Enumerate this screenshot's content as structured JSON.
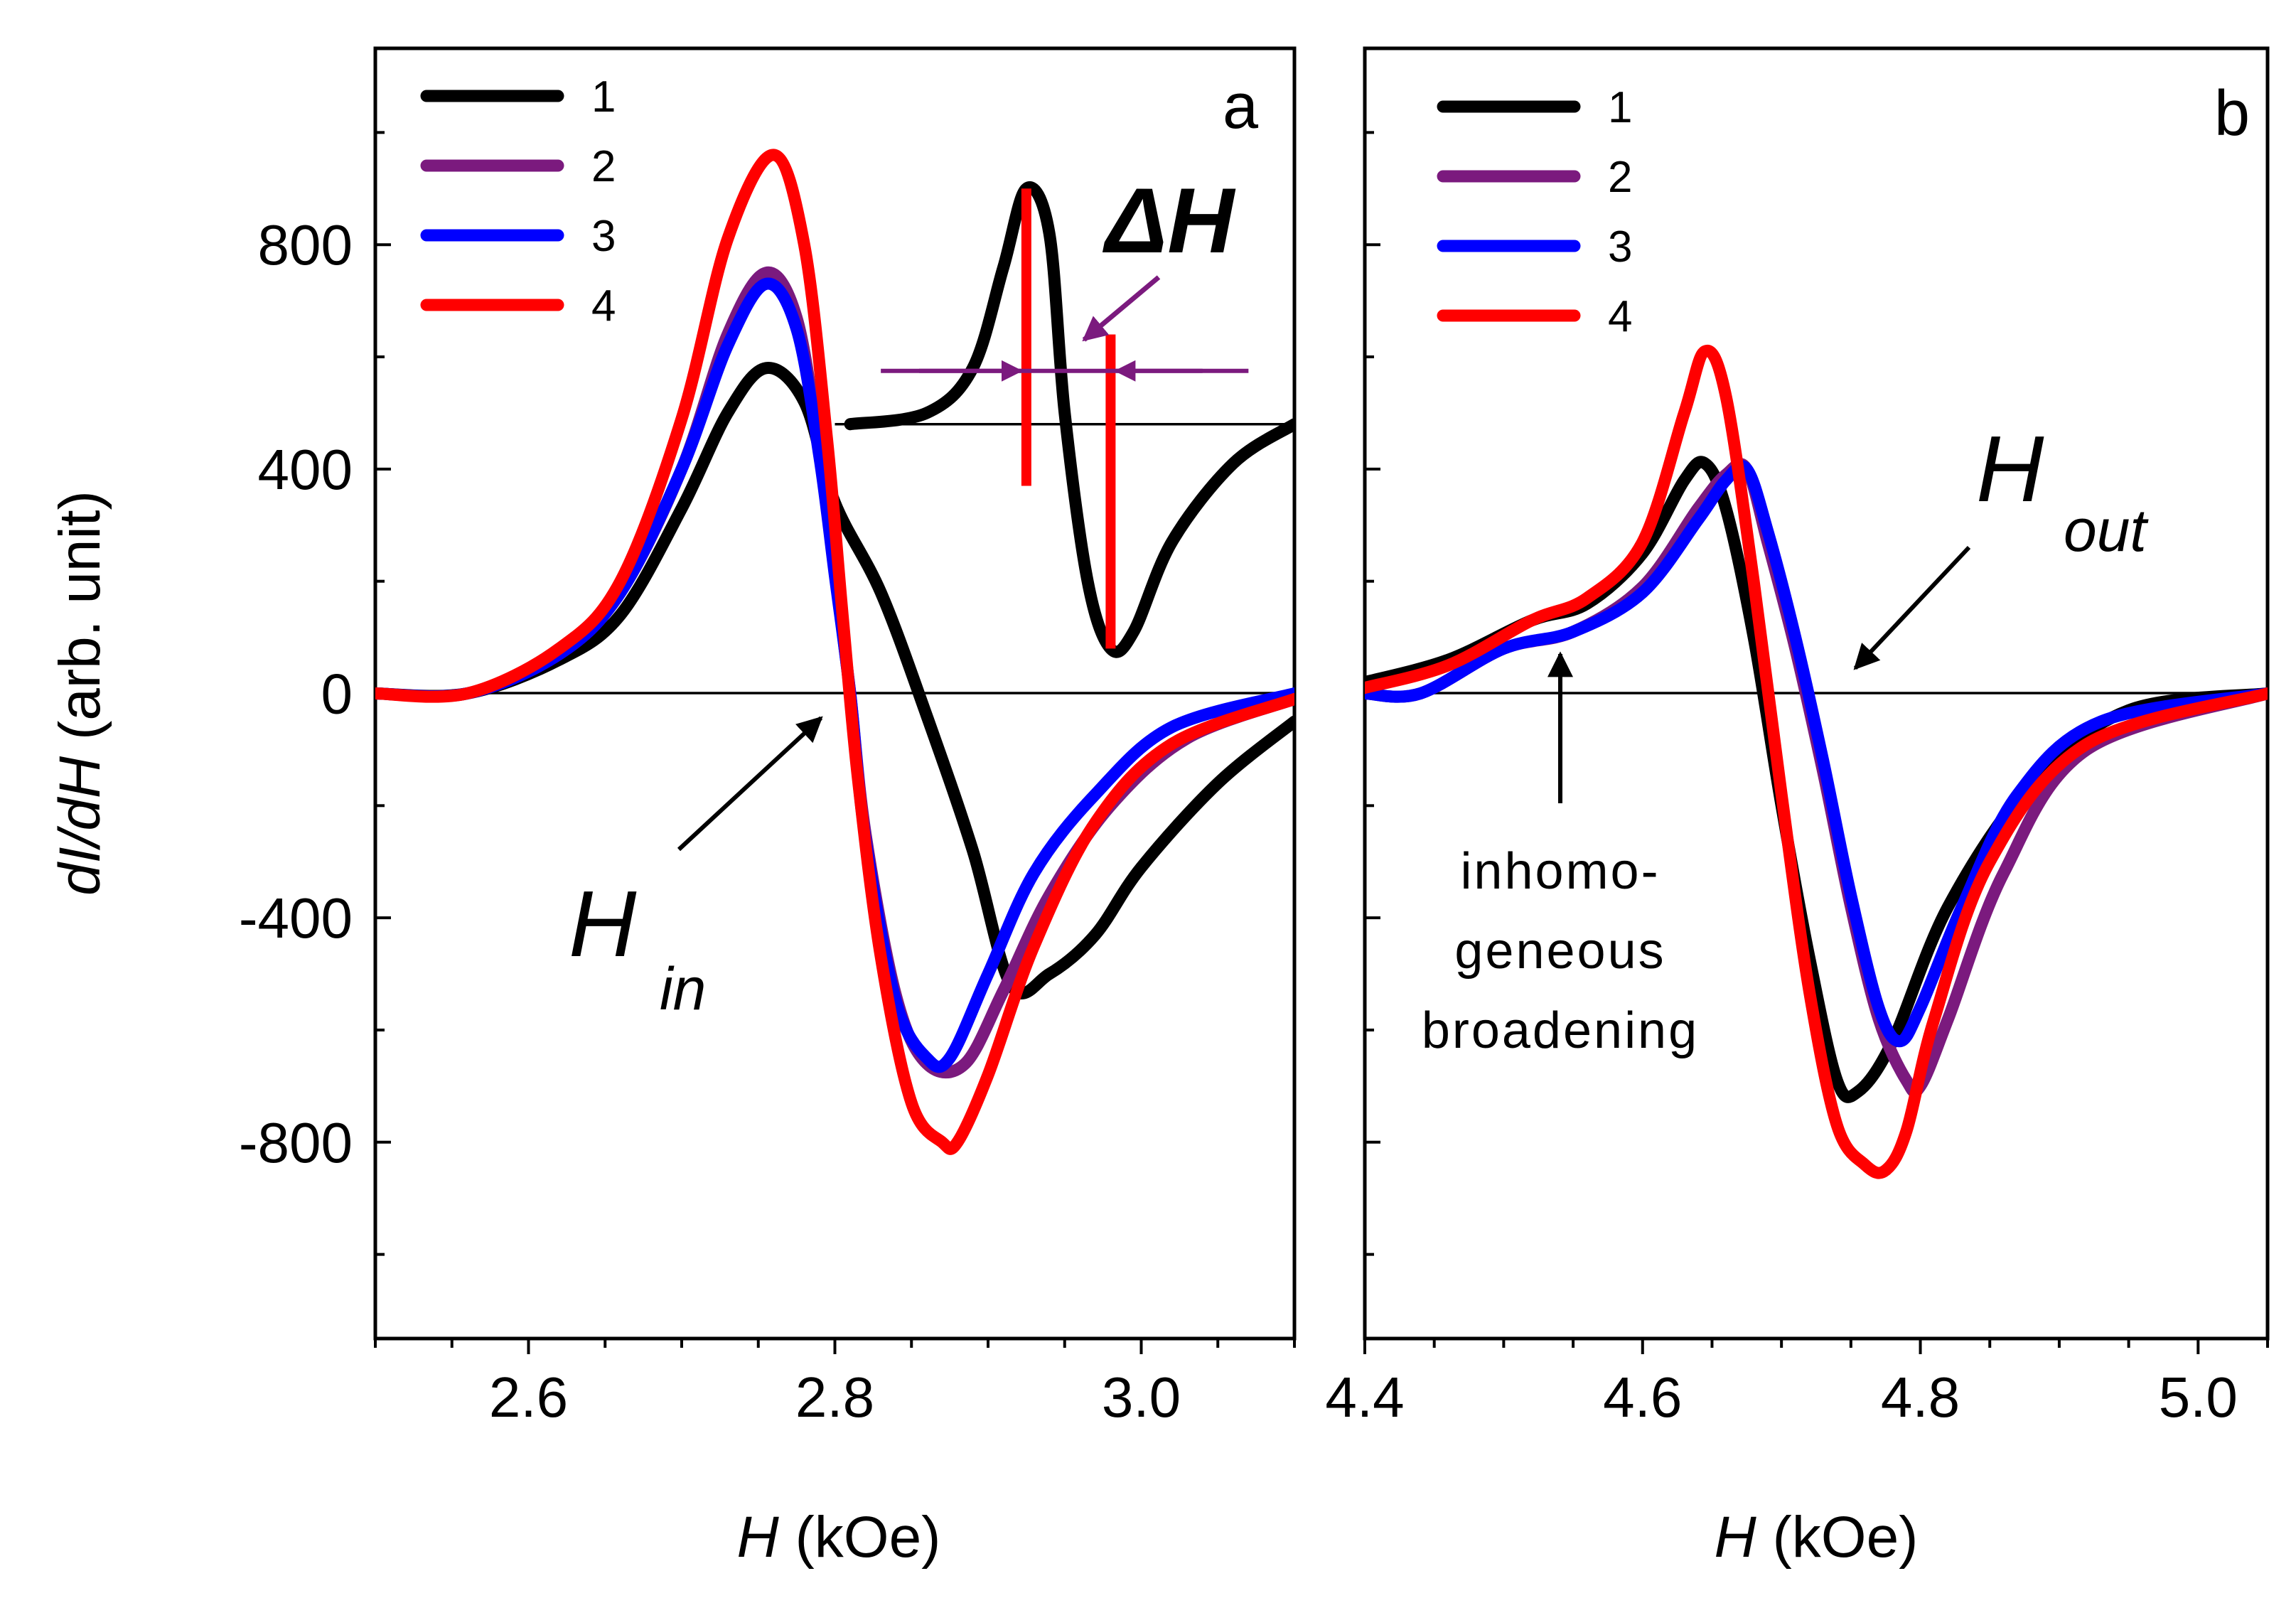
{
  "chart_data": [
    {
      "type": "line",
      "panel_label": "a",
      "xlabel": "H (kOe)",
      "ylabel": "dI/dH  (arb. unit)",
      "xlim": [
        2.5,
        3.1
      ],
      "ylim": [
        -1150,
        1150
      ],
      "xticks": [
        "2.6",
        "2.8",
        "3.0"
      ],
      "yticks": [
        "800",
        "400",
        "0",
        "-400",
        "-800"
      ],
      "legend": [
        "1",
        "2",
        "3",
        "4"
      ],
      "series": [
        {
          "name": "1",
          "color": "#000000",
          "x": [
            2.5,
            2.56,
            2.62,
            2.66,
            2.7,
            2.73,
            2.755,
            2.78,
            2.8,
            2.83,
            2.86,
            2.89,
            2.915,
            2.94,
            2.97,
            3.0,
            3.05,
            3.1
          ],
          "y": [
            0,
            0,
            60,
            140,
            330,
            500,
            580,
            520,
            340,
            180,
            -40,
            -280,
            -520,
            -500,
            -430,
            -310,
            -160,
            -50
          ]
        },
        {
          "name": "2",
          "color": "#7b1a7e",
          "x": [
            2.5,
            2.56,
            2.62,
            2.66,
            2.7,
            2.73,
            2.755,
            2.775,
            2.79,
            2.8,
            2.81,
            2.82,
            2.84,
            2.86,
            2.885,
            2.91,
            2.94,
            2.98,
            3.03,
            3.1
          ],
          "y": [
            0,
            0,
            70,
            180,
            400,
            640,
            750,
            670,
            430,
            220,
            0,
            -250,
            -540,
            -660,
            -660,
            -530,
            -360,
            -200,
            -80,
            -10
          ]
        },
        {
          "name": "3",
          "color": "#0000ff",
          "x": [
            2.5,
            2.56,
            2.62,
            2.66,
            2.7,
            2.73,
            2.755,
            2.775,
            2.79,
            2.8,
            2.81,
            2.82,
            2.84,
            2.86,
            2.875,
            2.9,
            2.93,
            2.97,
            3.02,
            3.1
          ],
          "y": [
            0,
            0,
            70,
            180,
            400,
            620,
            730,
            650,
            420,
            210,
            0,
            -260,
            -550,
            -650,
            -650,
            -500,
            -320,
            -180,
            -60,
            0
          ]
        },
        {
          "name": "4",
          "color": "#ff0000",
          "x": [
            2.5,
            2.56,
            2.62,
            2.66,
            2.7,
            2.73,
            2.76,
            2.78,
            2.795,
            2.805,
            2.815,
            2.83,
            2.85,
            2.87,
            2.88,
            2.9,
            2.93,
            2.97,
            3.02,
            3.1
          ],
          "y": [
            0,
            0,
            80,
            200,
            490,
            810,
            960,
            800,
            450,
            140,
            -150,
            -470,
            -730,
            -800,
            -800,
            -680,
            -450,
            -230,
            -90,
            -10
          ]
        }
      ],
      "inset": {
        "x": [
          2.81,
          2.86,
          2.89,
          2.91,
          2.925,
          2.94,
          2.95,
          2.965,
          2.98,
          2.995,
          3.02,
          3.06,
          3.1
        ],
        "y": [
          480,
          500,
          580,
          760,
          900,
          820,
          500,
          200,
          80,
          110,
          270,
          410,
          480
        ]
      },
      "annotations": [
        "ΔH",
        "H",
        "in"
      ]
    },
    {
      "type": "line",
      "panel_label": "b",
      "xlabel": "H (kOe)",
      "ylabel": "",
      "xlim": [
        4.4,
        5.05
      ],
      "ylim": [
        -1150,
        1150
      ],
      "xticks": [
        "4.4",
        "4.6",
        "4.8",
        "5.0"
      ],
      "yticks": [],
      "legend": [
        "1",
        "2",
        "3",
        "4"
      ],
      "series": [
        {
          "name": "1",
          "color": "#000000",
          "x": [
            4.4,
            4.46,
            4.52,
            4.56,
            4.6,
            4.63,
            4.645,
            4.66,
            4.68,
            4.7,
            4.72,
            4.74,
            4.755,
            4.78,
            4.82,
            4.88,
            4.95,
            5.05
          ],
          "y": [
            20,
            60,
            130,
            160,
            250,
            380,
            410,
            330,
            100,
            -200,
            -470,
            -690,
            -710,
            -620,
            -380,
            -160,
            -30,
            0
          ]
        },
        {
          "name": "2",
          "color": "#7b1a7e",
          "x": [
            4.4,
            4.44,
            4.5,
            4.55,
            4.6,
            4.64,
            4.66,
            4.675,
            4.69,
            4.71,
            4.73,
            4.75,
            4.77,
            4.79,
            4.8,
            4.82,
            4.86,
            4.92,
            5.05
          ],
          "y": [
            0,
            0,
            80,
            110,
            190,
            330,
            390,
            400,
            270,
            80,
            -140,
            -380,
            -580,
            -690,
            -700,
            -580,
            -320,
            -100,
            0
          ]
        },
        {
          "name": "3",
          "color": "#0000ff",
          "x": [
            4.4,
            4.44,
            4.5,
            4.55,
            4.6,
            4.64,
            4.66,
            4.675,
            4.69,
            4.71,
            4.73,
            4.75,
            4.77,
            4.785,
            4.8,
            4.83,
            4.87,
            4.93,
            5.05
          ],
          "y": [
            0,
            0,
            80,
            110,
            180,
            310,
            380,
            400,
            290,
            100,
            -120,
            -360,
            -560,
            -620,
            -560,
            -380,
            -180,
            -50,
            0
          ]
        },
        {
          "name": "4",
          "color": "#ff0000",
          "x": [
            4.4,
            4.46,
            4.52,
            4.56,
            4.6,
            4.63,
            4.645,
            4.66,
            4.68,
            4.7,
            4.72,
            4.74,
            4.76,
            4.775,
            4.79,
            4.81,
            4.85,
            4.92,
            5.05
          ],
          "y": [
            10,
            50,
            130,
            170,
            270,
            500,
            610,
            530,
            200,
            -180,
            -530,
            -770,
            -840,
            -850,
            -780,
            -580,
            -300,
            -90,
            0
          ]
        }
      ],
      "annotations": [
        "H",
        "out",
        "inhomo-",
        "geneous",
        "broadening"
      ]
    }
  ]
}
